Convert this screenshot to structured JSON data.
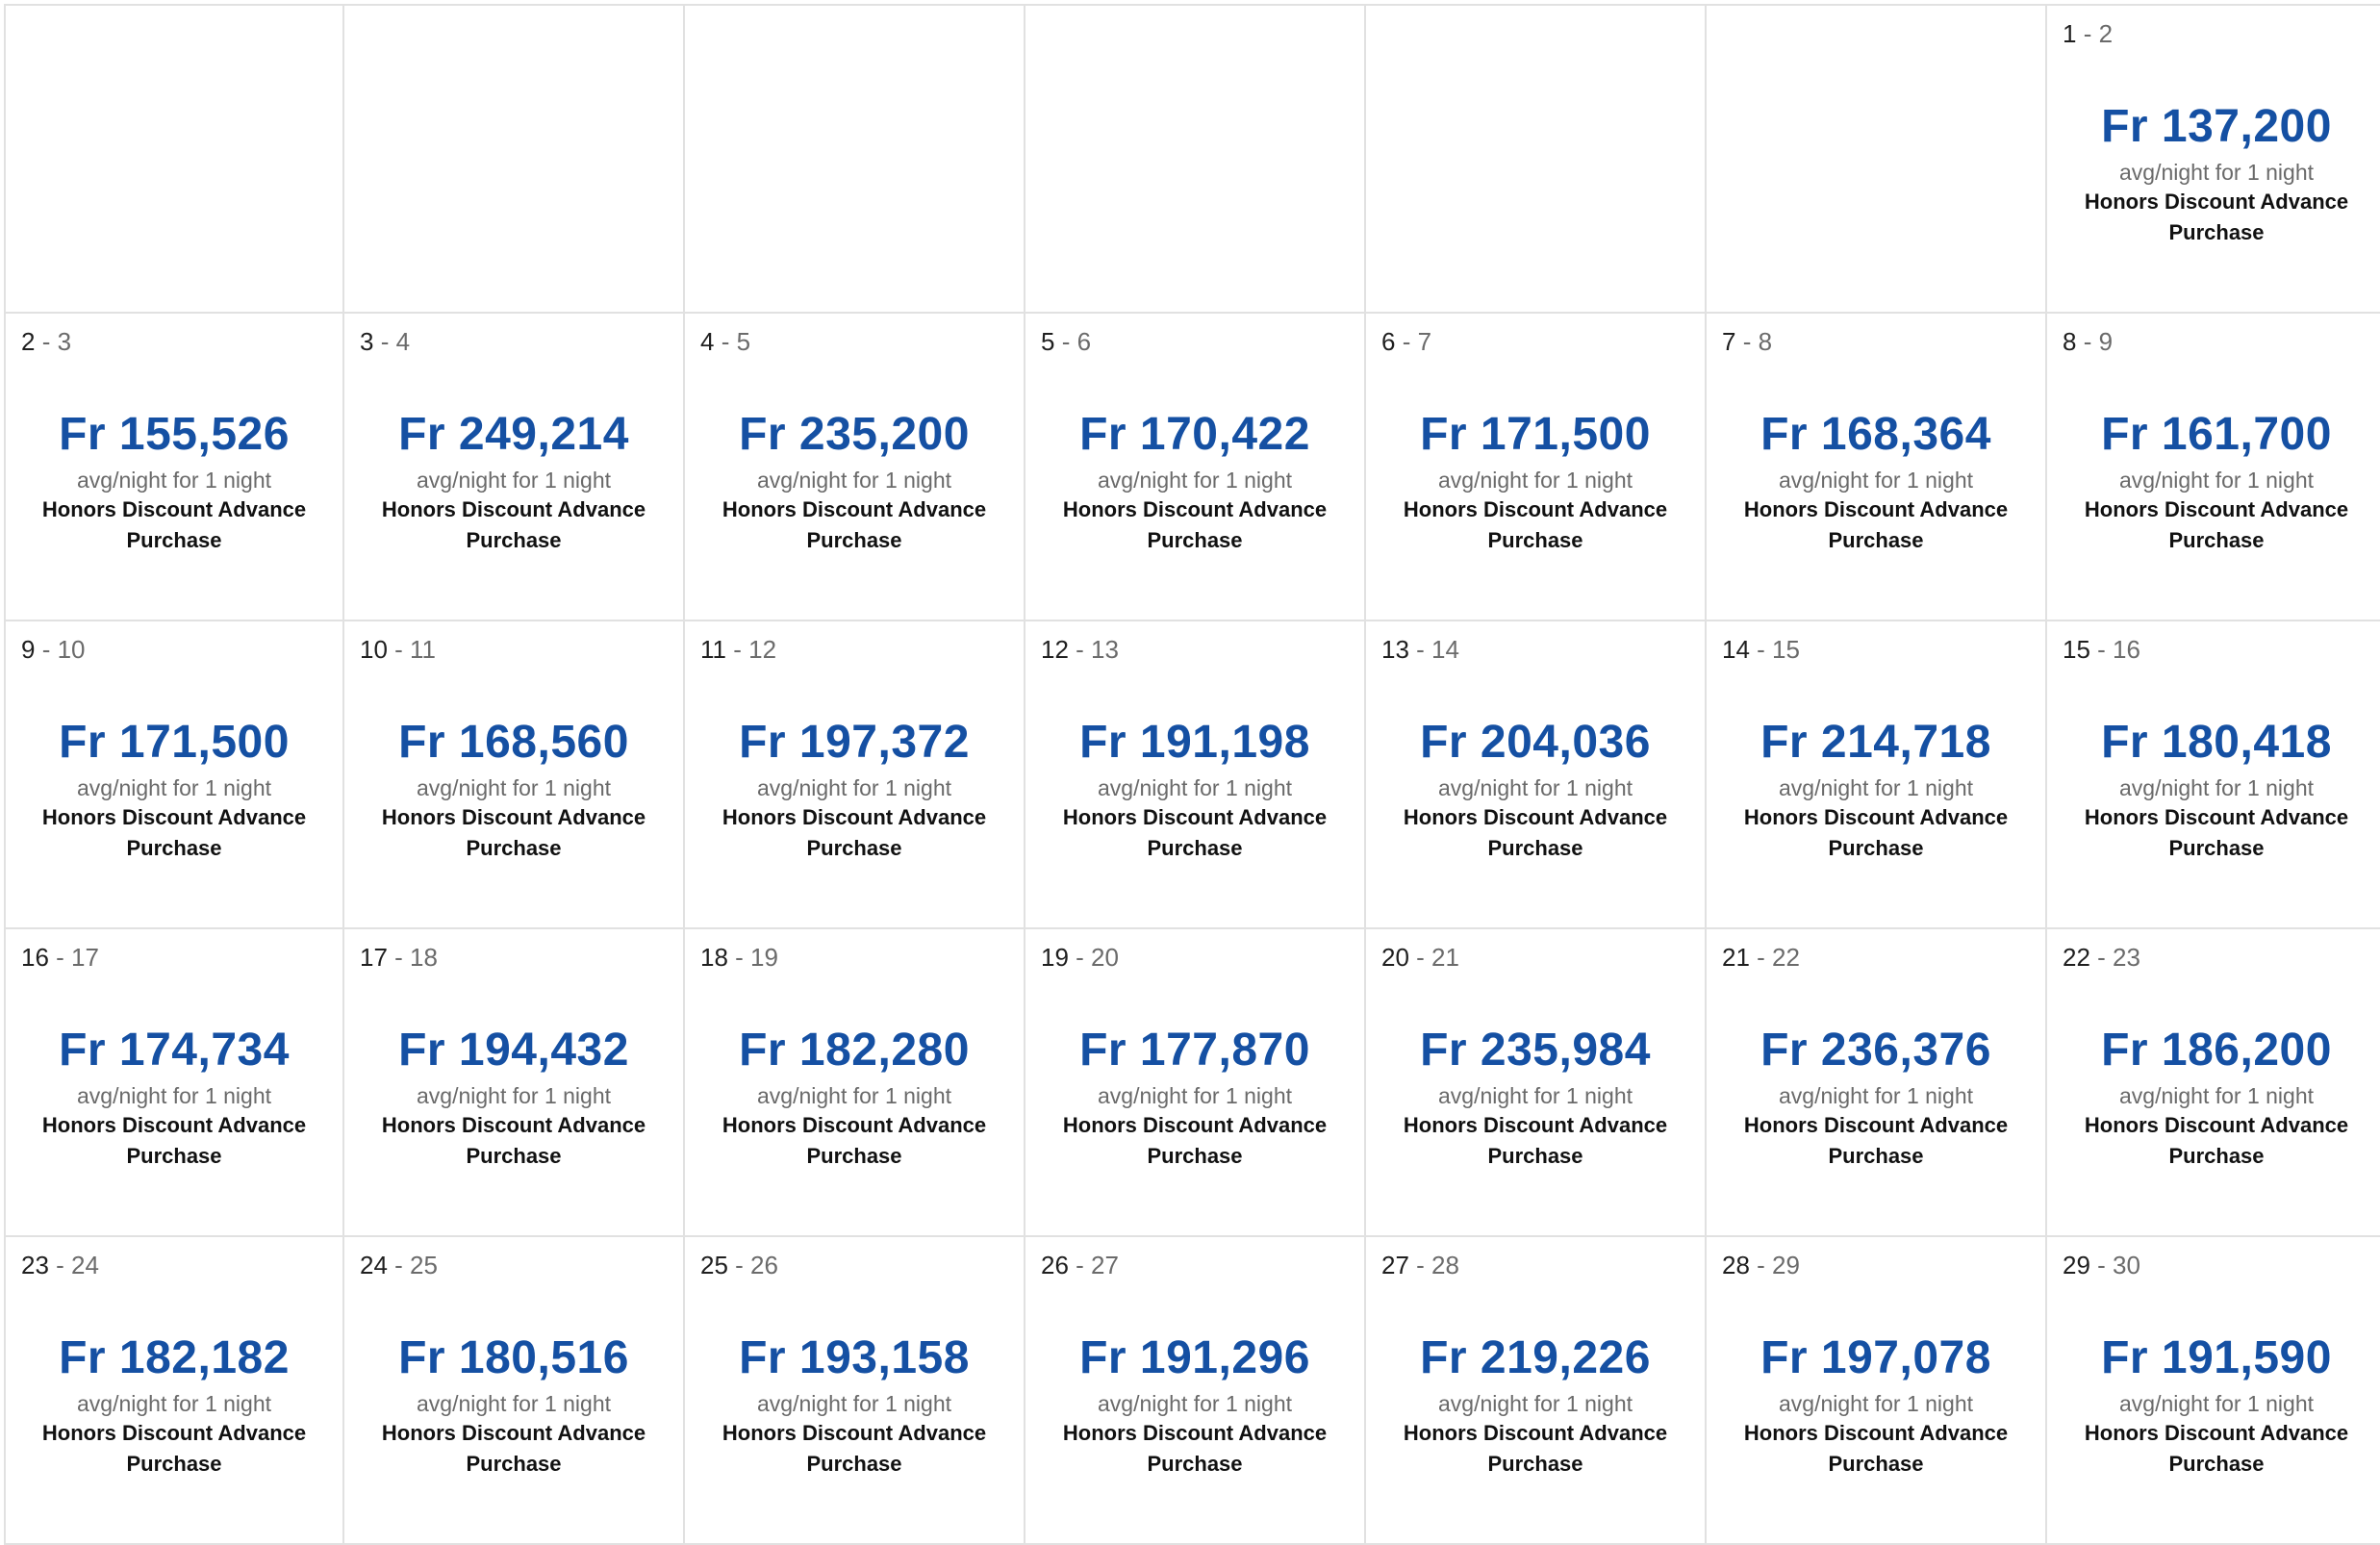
{
  "calendar": {
    "weeks": [
      [
        {
          "empty": true
        },
        {
          "empty": true
        },
        {
          "empty": true
        },
        {
          "empty": true
        },
        {
          "empty": true
        },
        {
          "empty": true
        },
        {
          "start": "1",
          "sep": " - ",
          "end": "2",
          "price": "Fr 137,200",
          "note": "avg/night for 1 night",
          "label": "Honors Discount Advance Purchase"
        }
      ],
      [
        {
          "start": "2",
          "sep": " - ",
          "end": "3",
          "price": "Fr 155,526",
          "note": "avg/night for 1 night",
          "label": "Honors Discount Advance Purchase"
        },
        {
          "start": "3",
          "sep": " - ",
          "end": "4",
          "price": "Fr 249,214",
          "note": "avg/night for 1 night",
          "label": "Honors Discount Advance Purchase"
        },
        {
          "start": "4",
          "sep": " - ",
          "end": "5",
          "price": "Fr 235,200",
          "note": "avg/night for 1 night",
          "label": "Honors Discount Advance Purchase"
        },
        {
          "start": "5",
          "sep": " - ",
          "end": "6",
          "price": "Fr 170,422",
          "note": "avg/night for 1 night",
          "label": "Honors Discount Advance Purchase"
        },
        {
          "start": "6",
          "sep": " - ",
          "end": "7",
          "price": "Fr 171,500",
          "note": "avg/night for 1 night",
          "label": "Honors Discount Advance Purchase"
        },
        {
          "start": "7",
          "sep": " - ",
          "end": "8",
          "price": "Fr 168,364",
          "note": "avg/night for 1 night",
          "label": "Honors Discount Advance Purchase"
        },
        {
          "start": "8",
          "sep": " - ",
          "end": "9",
          "price": "Fr 161,700",
          "note": "avg/night for 1 night",
          "label": "Honors Discount Advance Purchase"
        }
      ],
      [
        {
          "start": "9",
          "sep": " - ",
          "end": "10",
          "price": "Fr 171,500",
          "note": "avg/night for 1 night",
          "label": "Honors Discount Advance Purchase"
        },
        {
          "start": "10",
          "sep": " - ",
          "end": "11",
          "price": "Fr 168,560",
          "note": "avg/night for 1 night",
          "label": "Honors Discount Advance Purchase"
        },
        {
          "start": "11",
          "sep": " - ",
          "end": "12",
          "price": "Fr 197,372",
          "note": "avg/night for 1 night",
          "label": "Honors Discount Advance Purchase"
        },
        {
          "start": "12",
          "sep": " - ",
          "end": "13",
          "price": "Fr 191,198",
          "note": "avg/night for 1 night",
          "label": "Honors Discount Advance Purchase"
        },
        {
          "start": "13",
          "sep": " - ",
          "end": "14",
          "price": "Fr 204,036",
          "note": "avg/night for 1 night",
          "label": "Honors Discount Advance Purchase"
        },
        {
          "start": "14",
          "sep": " - ",
          "end": "15",
          "price": "Fr 214,718",
          "note": "avg/night for 1 night",
          "label": "Honors Discount Advance Purchase"
        },
        {
          "start": "15",
          "sep": " - ",
          "end": "16",
          "price": "Fr 180,418",
          "note": "avg/night for 1 night",
          "label": "Honors Discount Advance Purchase"
        }
      ],
      [
        {
          "start": "16",
          "sep": " - ",
          "end": "17",
          "price": "Fr 174,734",
          "note": "avg/night for 1 night",
          "label": "Honors Discount Advance Purchase"
        },
        {
          "start": "17",
          "sep": " - ",
          "end": "18",
          "price": "Fr 194,432",
          "note": "avg/night for 1 night",
          "label": "Honors Discount Advance Purchase"
        },
        {
          "start": "18",
          "sep": " - ",
          "end": "19",
          "price": "Fr 182,280",
          "note": "avg/night for 1 night",
          "label": "Honors Discount Advance Purchase"
        },
        {
          "start": "19",
          "sep": " - ",
          "end": "20",
          "price": "Fr 177,870",
          "note": "avg/night for 1 night",
          "label": "Honors Discount Advance Purchase"
        },
        {
          "start": "20",
          "sep": " - ",
          "end": "21",
          "price": "Fr 235,984",
          "note": "avg/night for 1 night",
          "label": "Honors Discount Advance Purchase"
        },
        {
          "start": "21",
          "sep": " - ",
          "end": "22",
          "price": "Fr 236,376",
          "note": "avg/night for 1 night",
          "label": "Honors Discount Advance Purchase"
        },
        {
          "start": "22",
          "sep": " - ",
          "end": "23",
          "price": "Fr 186,200",
          "note": "avg/night for 1 night",
          "label": "Honors Discount Advance Purchase"
        }
      ],
      [
        {
          "start": "23",
          "sep": " - ",
          "end": "24",
          "price": "Fr 182,182",
          "note": "avg/night for 1 night",
          "label": "Honors Discount Advance Purchase"
        },
        {
          "start": "24",
          "sep": " - ",
          "end": "25",
          "price": "Fr 180,516",
          "note": "avg/night for 1 night",
          "label": "Honors Discount Advance Purchase"
        },
        {
          "start": "25",
          "sep": " - ",
          "end": "26",
          "price": "Fr 193,158",
          "note": "avg/night for 1 night",
          "label": "Honors Discount Advance Purchase"
        },
        {
          "start": "26",
          "sep": " - ",
          "end": "27",
          "price": "Fr 191,296",
          "note": "avg/night for 1 night",
          "label": "Honors Discount Advance Purchase"
        },
        {
          "start": "27",
          "sep": " - ",
          "end": "28",
          "price": "Fr 219,226",
          "note": "avg/night for 1 night",
          "label": "Honors Discount Advance Purchase"
        },
        {
          "start": "28",
          "sep": " - ",
          "end": "29",
          "price": "Fr 197,078",
          "note": "avg/night for 1 night",
          "label": "Honors Discount Advance Purchase"
        },
        {
          "start": "29",
          "sep": " - ",
          "end": "30",
          "price": "Fr 191,590",
          "note": "avg/night for 1 night",
          "label": "Honors Discount Advance Purchase"
        }
      ]
    ]
  },
  "colors": {
    "price": "#1550a3",
    "grid_line": "#e1e1e1",
    "muted_text": "#6a6a6a"
  }
}
